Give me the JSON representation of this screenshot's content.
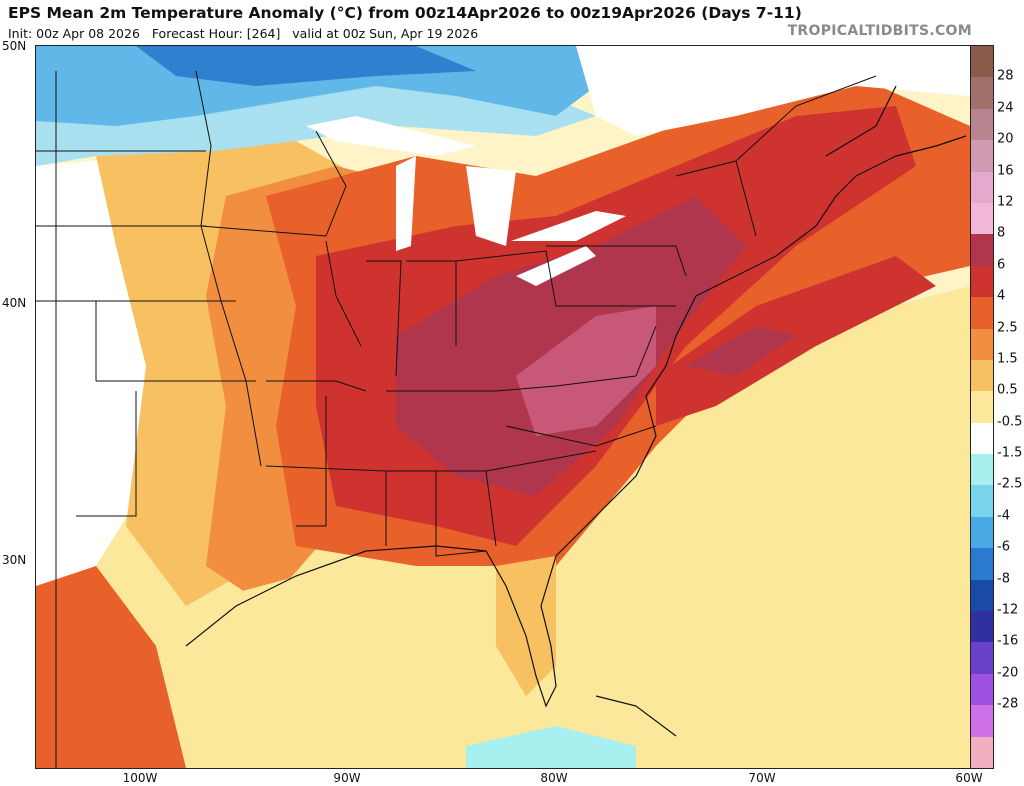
{
  "header": {
    "title": "EPS Mean 2m Temperature Anomaly (°C) from 00z14Apr2026 to 00z19Apr2026 (Days 7-11)",
    "subtitle": "Init: 00z Apr 08 2026   Forecast Hour: [264]   valid at 00z Sun, Apr 19 2026",
    "brand": "TROPICALTIDBITS.COM"
  },
  "axes": {
    "lat_labels": [
      "50N",
      "40N",
      "30N"
    ],
    "lon_labels": [
      "100W",
      "90W",
      "80W",
      "70W",
      "60W"
    ]
  },
  "colorbar": {
    "labels": [
      "28",
      "24",
      "20",
      "16",
      "12",
      "8",
      "6",
      "4",
      "2.5",
      "1.5",
      "0.5",
      "-0.5",
      "-1.5",
      "-2.5",
      "-4",
      "-6",
      "-8",
      "-12",
      "-16",
      "-20",
      "-28"
    ],
    "colors": [
      "#8c5a4a",
      "#a0706a",
      "#b88490",
      "#d09ab0",
      "#e6a8cc",
      "#f2b6d8",
      "#b0364e",
      "#cf3330",
      "#e8602a",
      "#f28e40",
      "#f7c060",
      "#fbe89a",
      "#ffffff",
      "#a8f0f0",
      "#78d4ec",
      "#4aa8e4",
      "#2a7ad0",
      "#1a4aa8",
      "#3030a0",
      "#6a40c8",
      "#a050e0",
      "#d070e8",
      "#f0b0c0"
    ]
  },
  "map": {
    "colors": {
      "ocean_warm": "#fff4c8",
      "pale": "#fbe89a",
      "light_orange": "#f7c060",
      "orange": "#f28e40",
      "dark_orange": "#e8602a",
      "red": "#cf3330",
      "dark_red": "#b0364e",
      "pink_core": "#c85878",
      "cool_light": "#a8e0f0",
      "cool": "#60b8e8",
      "cool_dark": "#3080d0",
      "neutral": "#ffffff",
      "border": "#111111",
      "county": "#9c8a78"
    }
  }
}
